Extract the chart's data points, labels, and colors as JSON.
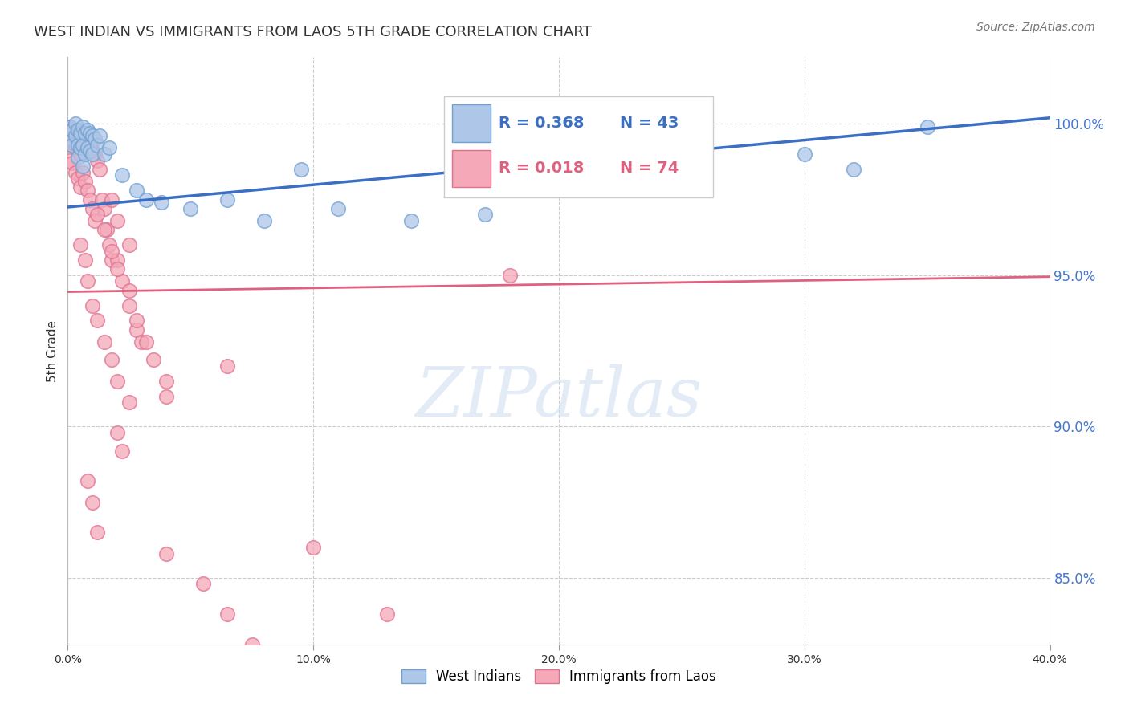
{
  "title": "WEST INDIAN VS IMMIGRANTS FROM LAOS 5TH GRADE CORRELATION CHART",
  "source": "Source: ZipAtlas.com",
  "ylabel": "5th Grade",
  "ytick_values": [
    0.85,
    0.9,
    0.95,
    1.0
  ],
  "xlim": [
    0.0,
    0.4
  ],
  "ylim": [
    0.828,
    1.022
  ],
  "legend_blue_r": "R = 0.368",
  "legend_blue_n": "N = 43",
  "legend_pink_r": "R = 0.018",
  "legend_pink_n": "N = 74",
  "blue_scatter_face": "#aec6e8",
  "blue_scatter_edge": "#6fa0d0",
  "pink_scatter_face": "#f4a8b8",
  "pink_scatter_edge": "#e07090",
  "blue_line_color": "#3a6fc4",
  "pink_line_color": "#e06080",
  "blue_line_x": [
    0.0,
    0.4
  ],
  "blue_line_y": [
    0.9725,
    1.002
  ],
  "pink_line_x": [
    0.0,
    0.4
  ],
  "pink_line_y": [
    0.9445,
    0.9495
  ],
  "blue_points_x": [
    0.001,
    0.001,
    0.002,
    0.002,
    0.003,
    0.003,
    0.004,
    0.004,
    0.004,
    0.005,
    0.005,
    0.006,
    0.006,
    0.006,
    0.007,
    0.007,
    0.008,
    0.008,
    0.009,
    0.009,
    0.01,
    0.01,
    0.011,
    0.012,
    0.013,
    0.015,
    0.017,
    0.022,
    0.028,
    0.032,
    0.038,
    0.05,
    0.065,
    0.08,
    0.095,
    0.11,
    0.14,
    0.17,
    0.2,
    0.24,
    0.3,
    0.32,
    0.35
  ],
  "blue_points_y": [
    0.999,
    0.995,
    0.998,
    0.993,
    1.0,
    0.996,
    0.998,
    0.993,
    0.989,
    0.997,
    0.992,
    0.999,
    0.993,
    0.986,
    0.997,
    0.99,
    0.998,
    0.992,
    0.997,
    0.991,
    0.996,
    0.99,
    0.995,
    0.993,
    0.996,
    0.99,
    0.992,
    0.983,
    0.978,
    0.975,
    0.974,
    0.972,
    0.975,
    0.968,
    0.985,
    0.972,
    0.968,
    0.97,
    0.978,
    0.985,
    0.99,
    0.985,
    0.999
  ],
  "pink_points_x": [
    0.001,
    0.001,
    0.001,
    0.002,
    0.002,
    0.002,
    0.003,
    0.003,
    0.003,
    0.004,
    0.004,
    0.004,
    0.005,
    0.005,
    0.005,
    0.006,
    0.006,
    0.007,
    0.007,
    0.008,
    0.008,
    0.009,
    0.009,
    0.01,
    0.01,
    0.011,
    0.011,
    0.012,
    0.013,
    0.014,
    0.015,
    0.016,
    0.017,
    0.018,
    0.02,
    0.022,
    0.025,
    0.028,
    0.03,
    0.035,
    0.04,
    0.012,
    0.015,
    0.018,
    0.02,
    0.025,
    0.028,
    0.032,
    0.04,
    0.018,
    0.02,
    0.025,
    0.005,
    0.007,
    0.008,
    0.01,
    0.012,
    0.015,
    0.018,
    0.02,
    0.025,
    0.065,
    0.18,
    0.02,
    0.022,
    0.008,
    0.01,
    0.012,
    0.04,
    0.055,
    0.065,
    0.075,
    0.1,
    0.13
  ],
  "pink_points_y": [
    0.999,
    0.994,
    0.988,
    0.998,
    0.993,
    0.987,
    0.998,
    0.993,
    0.984,
    0.997,
    0.991,
    0.982,
    0.996,
    0.99,
    0.979,
    0.995,
    0.984,
    0.994,
    0.981,
    0.993,
    0.978,
    0.992,
    0.975,
    0.991,
    0.972,
    0.99,
    0.968,
    0.988,
    0.985,
    0.975,
    0.972,
    0.965,
    0.96,
    0.955,
    0.955,
    0.948,
    0.94,
    0.932,
    0.928,
    0.922,
    0.915,
    0.97,
    0.965,
    0.958,
    0.952,
    0.945,
    0.935,
    0.928,
    0.91,
    0.975,
    0.968,
    0.96,
    0.96,
    0.955,
    0.948,
    0.94,
    0.935,
    0.928,
    0.922,
    0.915,
    0.908,
    0.92,
    0.95,
    0.898,
    0.892,
    0.882,
    0.875,
    0.865,
    0.858,
    0.848,
    0.838,
    0.828,
    0.86,
    0.838
  ]
}
